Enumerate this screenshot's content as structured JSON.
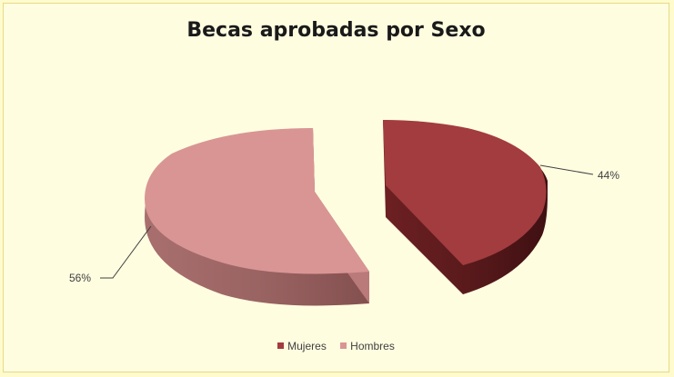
{
  "chart_data": {
    "type": "pie",
    "title": "Becas aprobadas por Sexo",
    "three_d": true,
    "exploded": true,
    "categories": [
      "Mujeres",
      "Hombres"
    ],
    "values": [
      44,
      56
    ],
    "data_labels": [
      "44%",
      "56%"
    ],
    "colors": [
      "#a23c3f",
      "#d99594"
    ],
    "legend": {
      "placement": "bottom",
      "entries": [
        "Mujeres",
        "Hombres"
      ]
    }
  }
}
